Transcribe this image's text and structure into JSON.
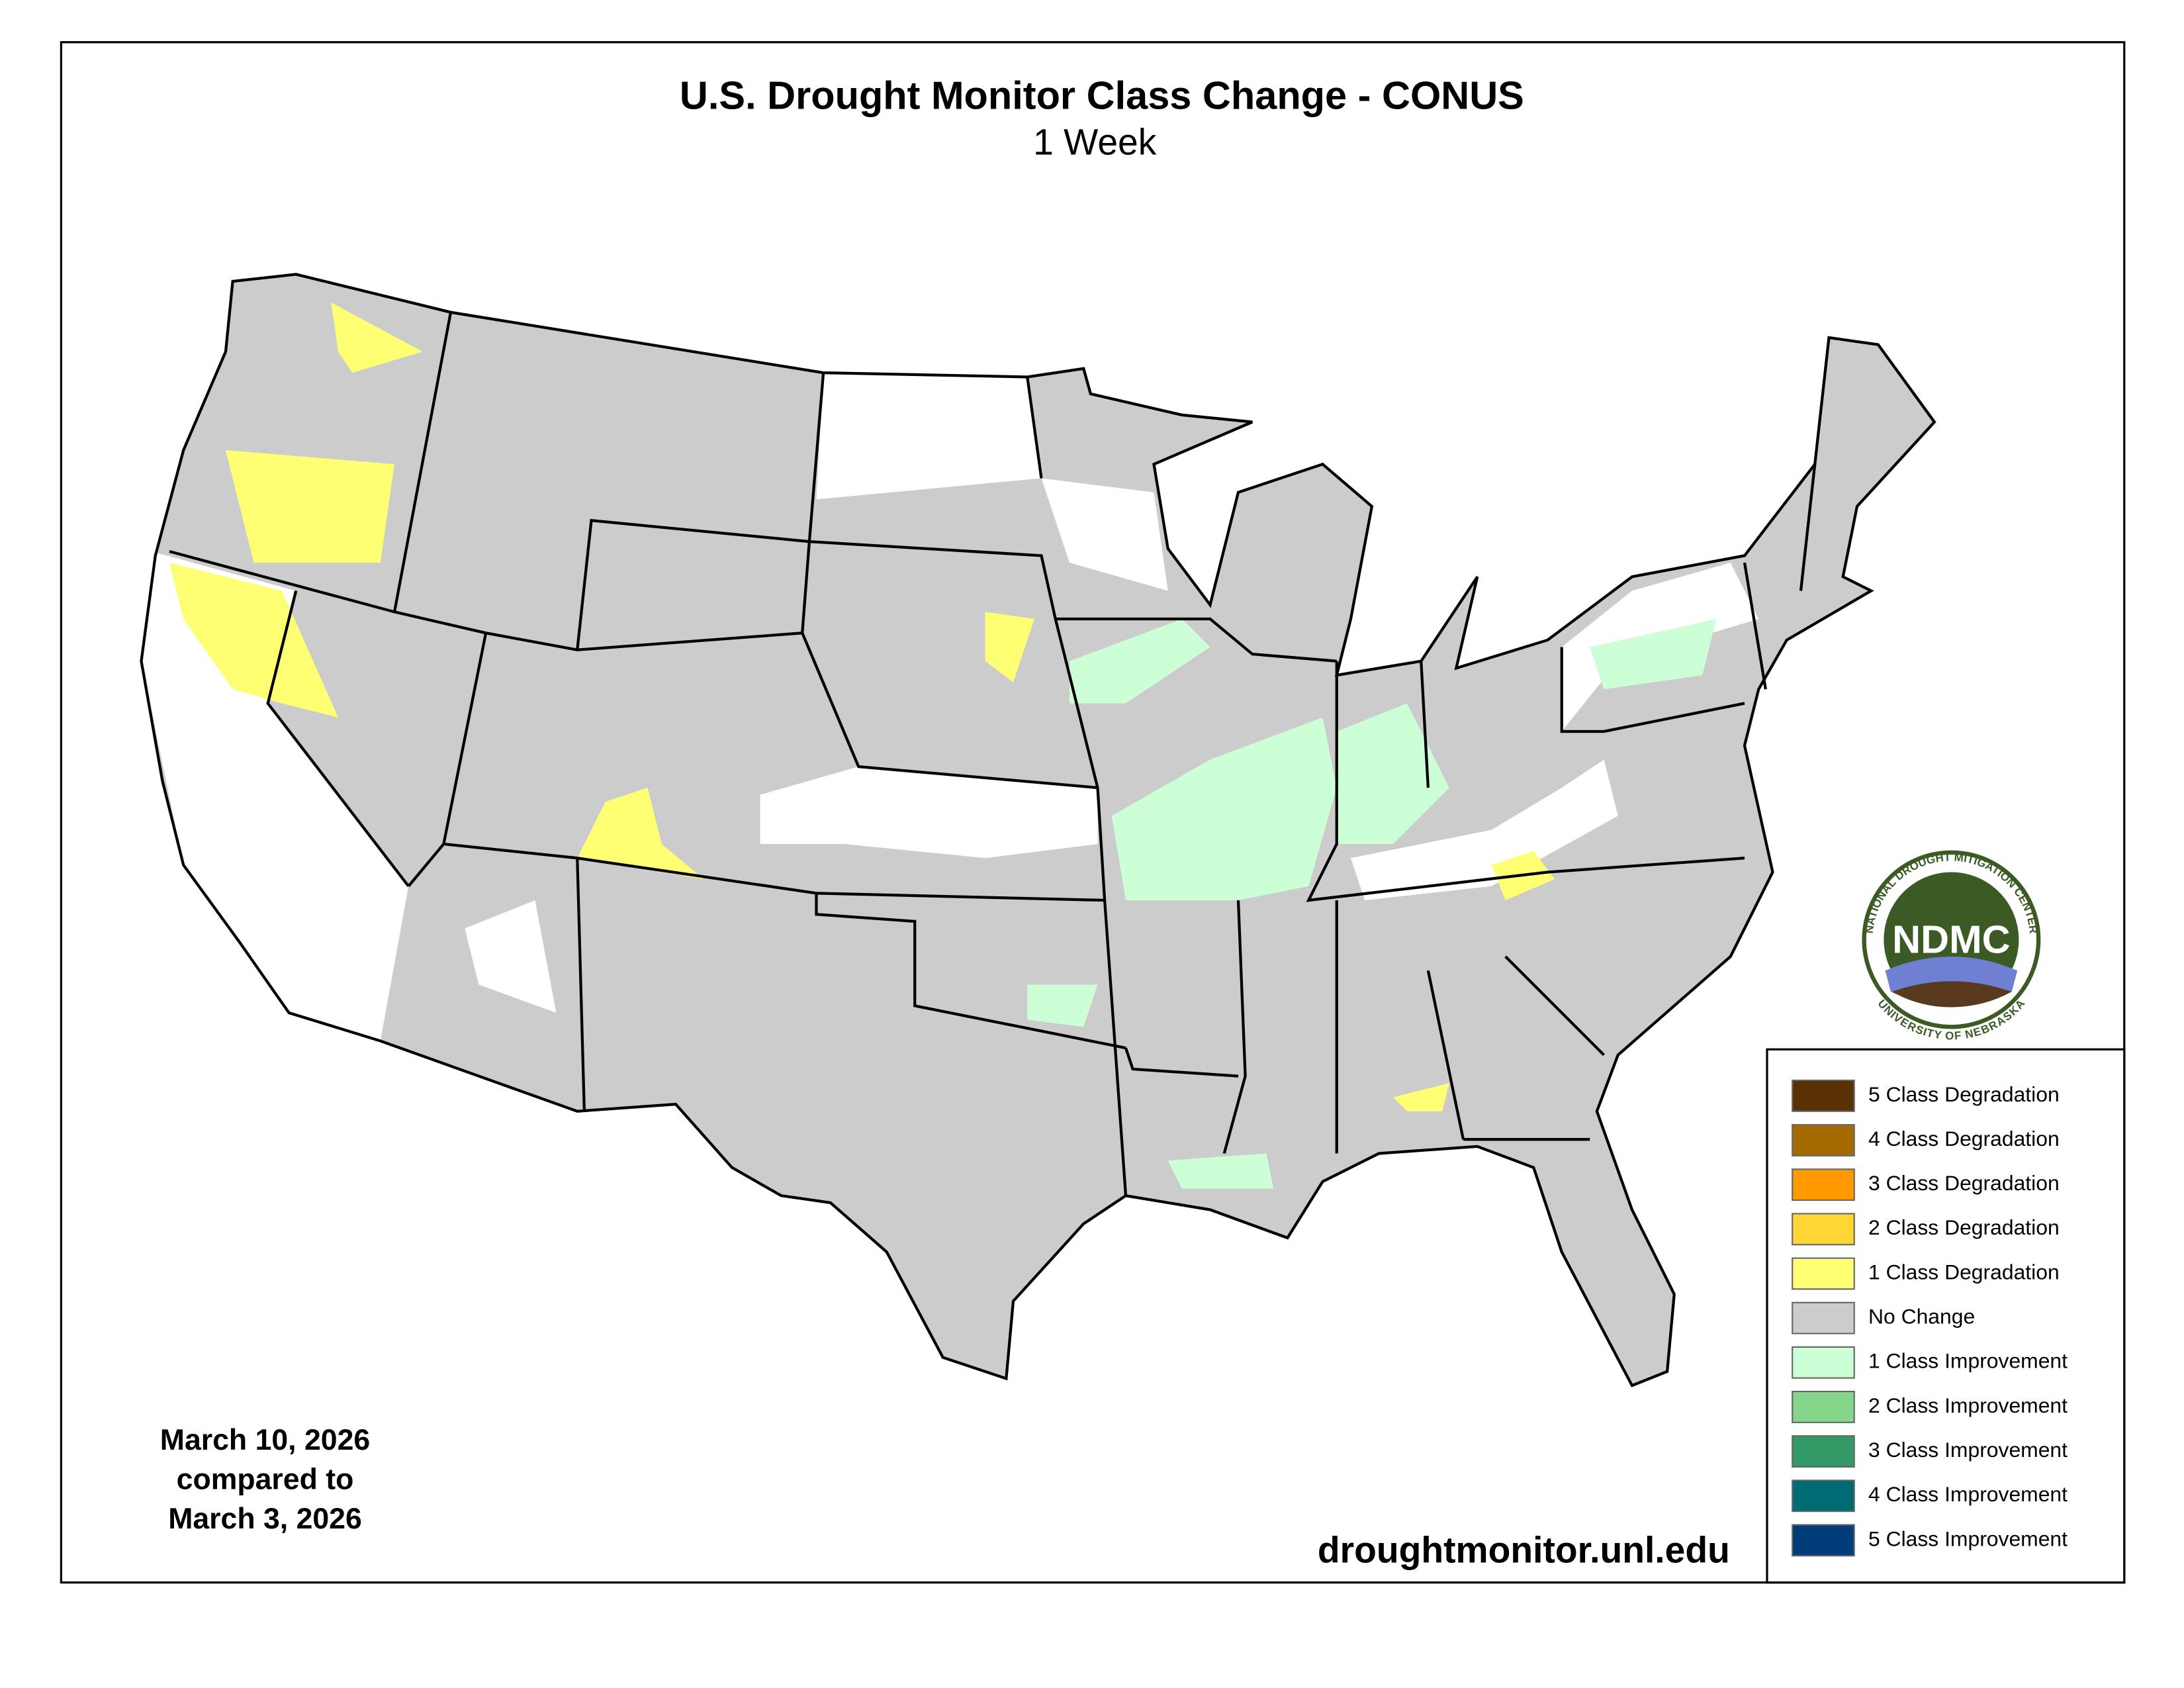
{
  "header": {
    "title": "U.S. Drought Monitor Class Change - CONUS",
    "subtitle": "1 Week"
  },
  "legend": {
    "items": [
      {
        "label": "5 Class Degradation",
        "color": "#5a3005"
      },
      {
        "label": "4 Class Degradation",
        "color": "#a66b00"
      },
      {
        "label": "3 Class Degradation",
        "color": "#ff9900"
      },
      {
        "label": "2 Class Degradation",
        "color": "#ffd633"
      },
      {
        "label": "1 Class Degradation",
        "color": "#ffff73"
      },
      {
        "label": "No Change",
        "color": "#cccccc"
      },
      {
        "label": "1 Class Improvement",
        "color": "#ccffd6"
      },
      {
        "label": "2 Class Improvement",
        "color": "#85d68a"
      },
      {
        "label": "3 Class Improvement",
        "color": "#339966"
      },
      {
        "label": "4 Class Improvement",
        "color": "#006b73"
      },
      {
        "label": "5 Class Improvement",
        "color": "#003d7a"
      }
    ]
  },
  "dates": {
    "lines": [
      "March 10, 2026",
      "compared to",
      "March 3, 2026"
    ]
  },
  "url": "droughtmonitor.unl.edu",
  "logo": {
    "abbr": "NDMC",
    "top": "NATIONAL DROUGHT MITIGATION CENTER",
    "bottom": "UNIVERSITY OF NEBRASKA"
  }
}
